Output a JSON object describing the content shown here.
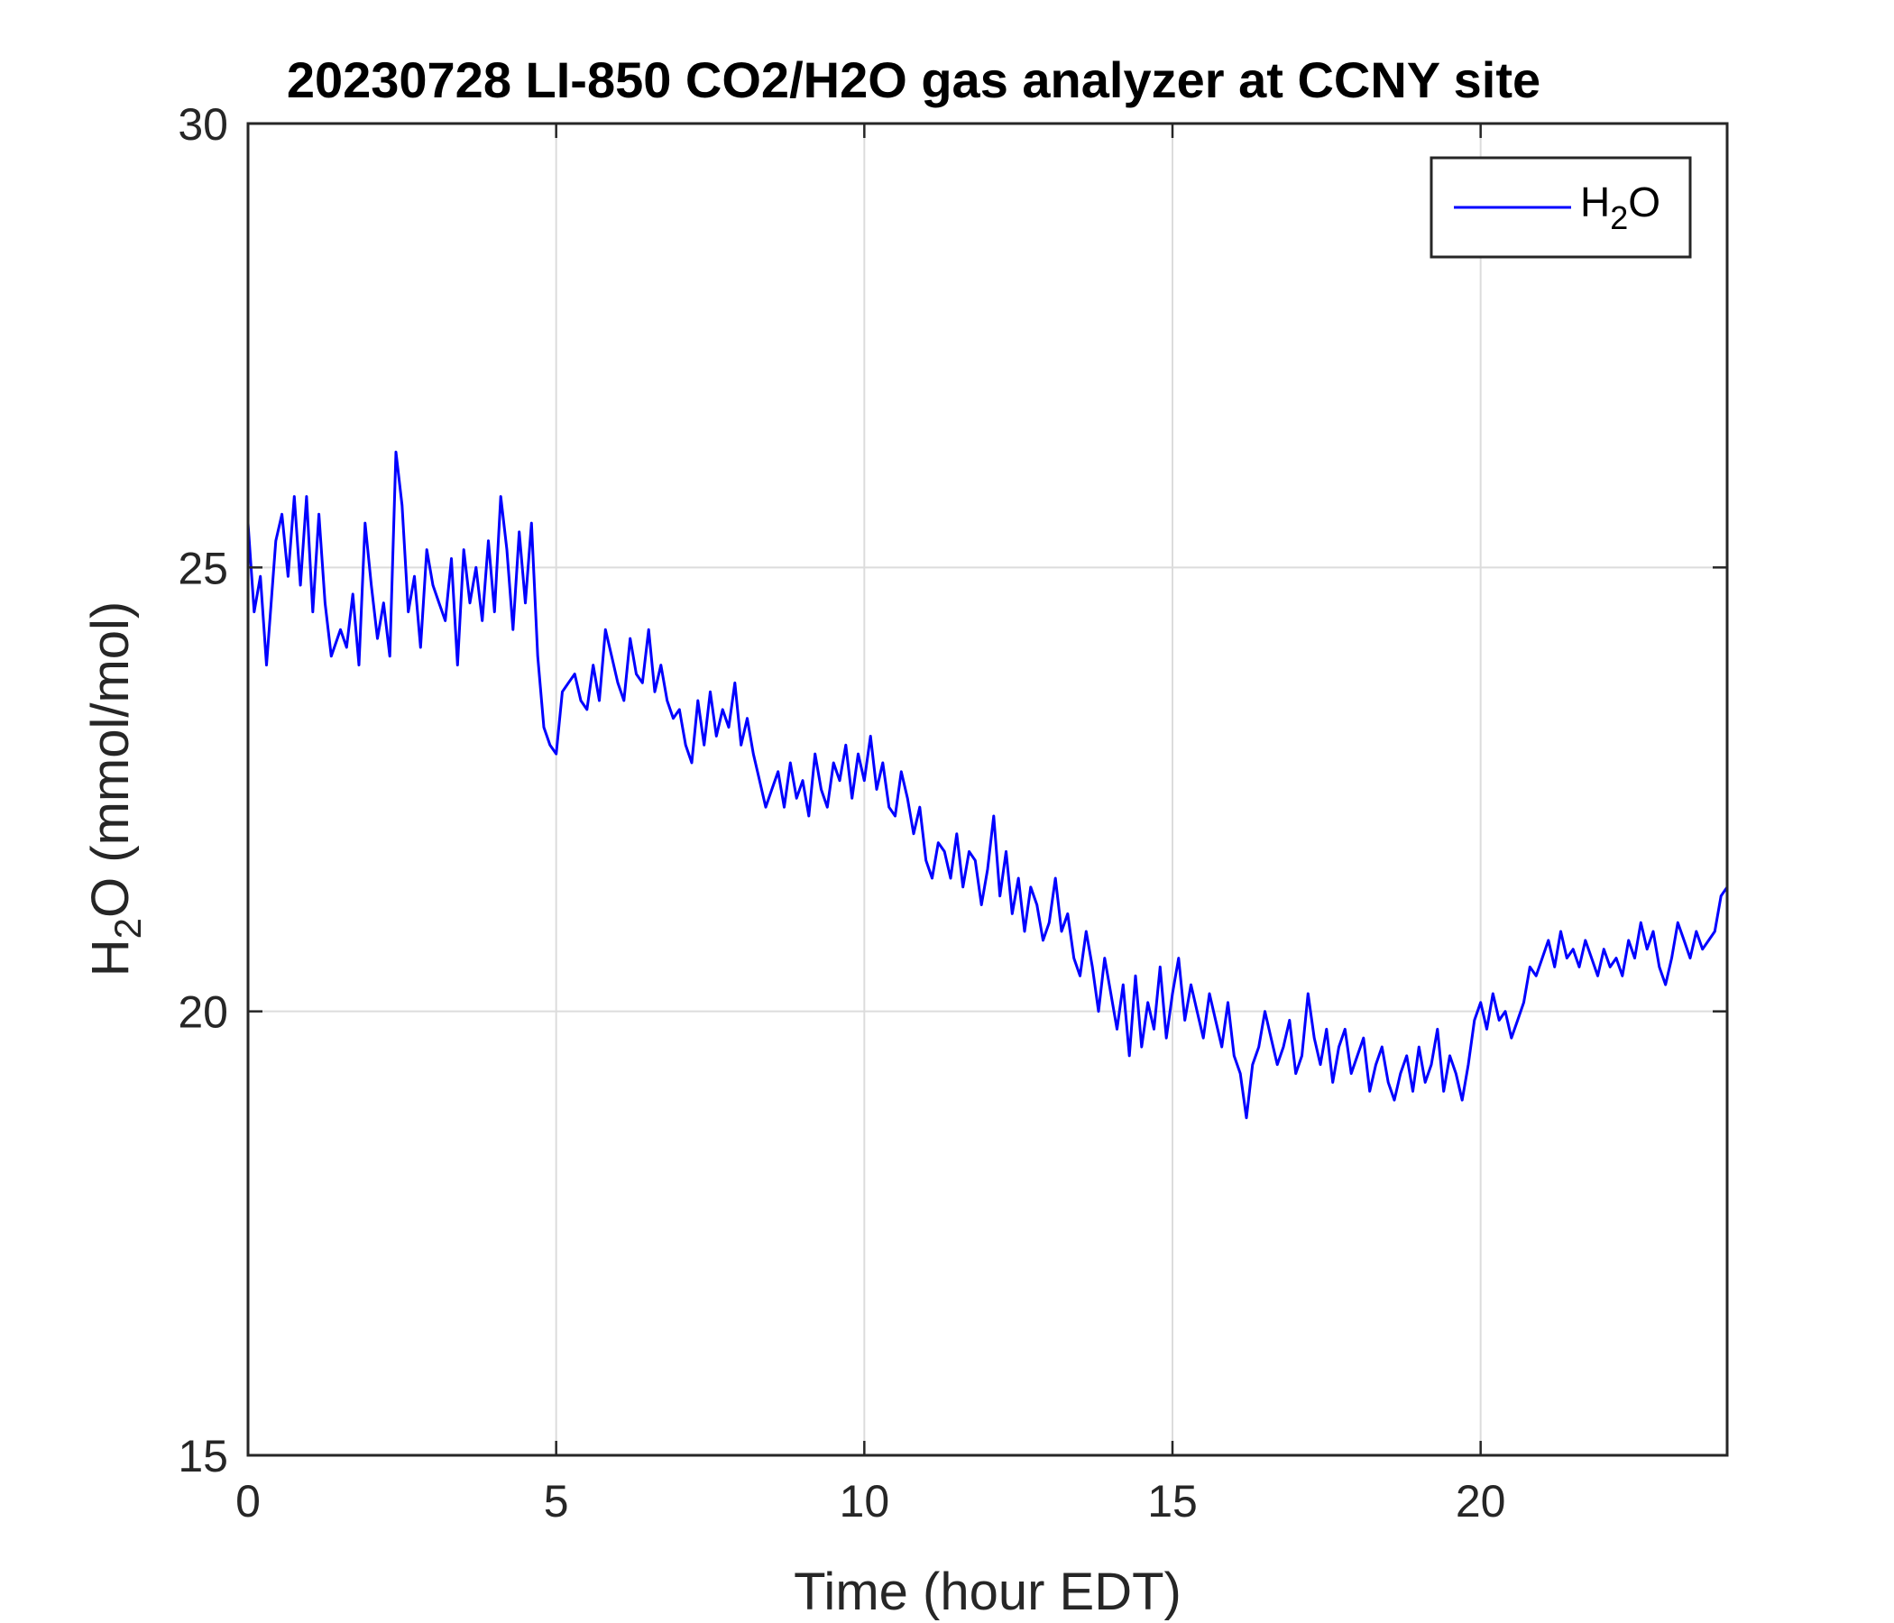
{
  "chart_data": {
    "type": "line",
    "title": "20230728 LI-850 CO2/H2O gas analyzer at CCNY site",
    "xlabel": "Time (hour EDT)",
    "ylabel": {
      "main": "H",
      "sub": "2",
      "rest": "O (mmol/mol)"
    },
    "xlim": [
      0,
      24
    ],
    "ylim": [
      15,
      30
    ],
    "xticks": [
      0,
      5,
      10,
      15,
      20
    ],
    "yticks": [
      15,
      20,
      25,
      30
    ],
    "grid": true,
    "legend_position": "top-right",
    "series": [
      {
        "name": {
          "main": "H",
          "sub": "2",
          "rest": "O"
        },
        "color": "#0000ff",
        "x": [
          0,
          0.1,
          0.2,
          0.3,
          0.45,
          0.55,
          0.65,
          0.75,
          0.85,
          0.95,
          1.05,
          1.15,
          1.25,
          1.35,
          1.5,
          1.6,
          1.7,
          1.8,
          1.9,
          2.0,
          2.1,
          2.2,
          2.3,
          2.4,
          2.5,
          2.6,
          2.7,
          2.8,
          2.9,
          3.0,
          3.1,
          3.2,
          3.3,
          3.4,
          3.5,
          3.6,
          3.7,
          3.8,
          3.9,
          4.0,
          4.1,
          4.2,
          4.3,
          4.4,
          4.5,
          4.6,
          4.7,
          4.8,
          4.9,
          5.0,
          5.1,
          5.2,
          5.3,
          5.4,
          5.5,
          5.6,
          5.7,
          5.8,
          5.9,
          6.0,
          6.1,
          6.2,
          6.3,
          6.4,
          6.5,
          6.6,
          6.7,
          6.8,
          6.9,
          7.0,
          7.1,
          7.2,
          7.3,
          7.4,
          7.5,
          7.6,
          7.7,
          7.8,
          7.9,
          8.0,
          8.1,
          8.2,
          8.3,
          8.4,
          8.5,
          8.6,
          8.7,
          8.8,
          8.9,
          9.0,
          9.1,
          9.2,
          9.3,
          9.4,
          9.5,
          9.6,
          9.7,
          9.8,
          9.9,
          10.0,
          10.1,
          10.2,
          10.3,
          10.4,
          10.5,
          10.6,
          10.7,
          10.8,
          10.9,
          11.0,
          11.1,
          11.2,
          11.3,
          11.4,
          11.5,
          11.6,
          11.7,
          11.8,
          11.9,
          12.0,
          12.1,
          12.2,
          12.3,
          12.4,
          12.5,
          12.6,
          12.7,
          12.8,
          12.9,
          13.0,
          13.1,
          13.2,
          13.3,
          13.4,
          13.5,
          13.6,
          13.7,
          13.8,
          13.9,
          14.0,
          14.1,
          14.2,
          14.3,
          14.4,
          14.5,
          14.6,
          14.7,
          14.8,
          14.9,
          15.0,
          15.1,
          15.2,
          15.3,
          15.4,
          15.5,
          15.6,
          15.7,
          15.8,
          15.9,
          16.0,
          16.1,
          16.2,
          16.3,
          16.4,
          16.5,
          16.6,
          16.7,
          16.8,
          16.9,
          17.0,
          17.1,
          17.2,
          17.3,
          17.4,
          17.5,
          17.6,
          17.7,
          17.8,
          17.9,
          18.0,
          18.1,
          18.2,
          18.3,
          18.4,
          18.5,
          18.6,
          18.7,
          18.8,
          18.9,
          19.0,
          19.1,
          19.2,
          19.3,
          19.4,
          19.5,
          19.6,
          19.7,
          19.8,
          19.9,
          20.0,
          20.1,
          20.2,
          20.3,
          20.4,
          20.5,
          20.6,
          20.7,
          20.8,
          20.9,
          21.0,
          21.1,
          21.2,
          21.3,
          21.4,
          21.5,
          21.6,
          21.7,
          21.8,
          21.9,
          22.0,
          22.1,
          22.2,
          22.3,
          22.4,
          22.5,
          22.6,
          22.7,
          22.8,
          22.9,
          23.0,
          23.1,
          23.2,
          23.3,
          23.4,
          23.5,
          23.6,
          23.7,
          23.8,
          23.9,
          24.0
        ],
        "values": [
          25.5,
          24.5,
          24.9,
          23.9,
          25.3,
          25.6,
          24.9,
          25.8,
          24.8,
          25.8,
          24.5,
          25.6,
          24.6,
          24.0,
          24.3,
          24.1,
          24.7,
          23.9,
          25.5,
          24.8,
          24.2,
          24.6,
          24.0,
          26.3,
          25.7,
          24.5,
          24.9,
          24.1,
          25.2,
          24.8,
          24.6,
          24.4,
          25.1,
          23.9,
          25.2,
          24.6,
          25.0,
          24.4,
          25.3,
          24.5,
          25.8,
          25.2,
          24.3,
          25.4,
          24.6,
          25.5,
          24.0,
          23.2,
          23.0,
          22.9,
          23.6,
          23.7,
          23.8,
          23.5,
          23.4,
          23.9,
          23.5,
          24.3,
          24.0,
          23.7,
          23.5,
          24.2,
          23.8,
          23.7,
          24.3,
          23.6,
          23.9,
          23.5,
          23.3,
          23.4,
          23.0,
          22.8,
          23.5,
          23.0,
          23.6,
          23.1,
          23.4,
          23.2,
          23.7,
          23.0,
          23.3,
          22.9,
          22.6,
          22.3,
          22.5,
          22.7,
          22.3,
          22.8,
          22.4,
          22.6,
          22.2,
          22.9,
          22.5,
          22.3,
          22.8,
          22.6,
          23.0,
          22.4,
          22.9,
          22.6,
          23.1,
          22.5,
          22.8,
          22.3,
          22.2,
          22.7,
          22.4,
          22.0,
          22.3,
          21.7,
          21.5,
          21.9,
          21.8,
          21.5,
          22.0,
          21.4,
          21.8,
          21.7,
          21.2,
          21.6,
          22.2,
          21.3,
          21.8,
          21.1,
          21.5,
          20.9,
          21.4,
          21.2,
          20.8,
          21.0,
          21.5,
          20.9,
          21.1,
          20.6,
          20.4,
          20.9,
          20.5,
          20.0,
          20.6,
          20.2,
          19.8,
          20.3,
          19.5,
          20.4,
          19.6,
          20.1,
          19.8,
          20.5,
          19.7,
          20.2,
          20.6,
          19.9,
          20.3,
          20.0,
          19.7,
          20.2,
          19.9,
          19.6,
          20.1,
          19.5,
          19.3,
          18.8,
          19.4,
          19.6,
          20.0,
          19.7,
          19.4,
          19.6,
          19.9,
          19.3,
          19.5,
          20.2,
          19.7,
          19.4,
          19.8,
          19.2,
          19.6,
          19.8,
          19.3,
          19.5,
          19.7,
          19.1,
          19.4,
          19.6,
          19.2,
          19.0,
          19.3,
          19.5,
          19.1,
          19.6,
          19.2,
          19.4,
          19.8,
          19.1,
          19.5,
          19.3,
          19.0,
          19.4,
          19.9,
          20.1,
          19.8,
          20.2,
          19.9,
          20.0,
          19.7,
          19.9,
          20.1,
          20.5,
          20.4,
          20.6,
          20.8,
          20.5,
          20.9,
          20.6,
          20.7,
          20.5,
          20.8,
          20.6,
          20.4,
          20.7,
          20.5,
          20.6,
          20.4,
          20.8,
          20.6,
          21.0,
          20.7,
          20.9,
          20.5,
          20.3,
          20.6,
          21.0,
          20.8,
          20.6,
          20.9,
          20.7,
          20.8,
          20.9,
          21.3,
          21.4
        ]
      }
    ]
  }
}
